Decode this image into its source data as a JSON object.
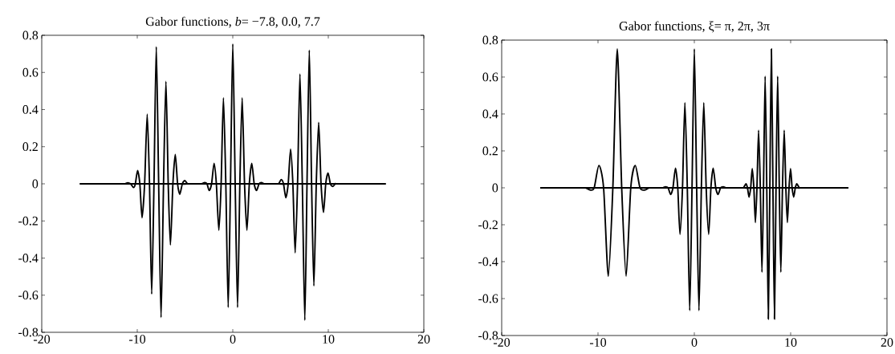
{
  "chart_data": [
    {
      "type": "line",
      "title": "Gabor functions, *b*= −7.8, 0.0, 7.7",
      "xlim": [
        -20,
        20
      ],
      "ylim": [
        -0.8,
        0.8
      ],
      "xticks": [
        -20,
        -10,
        0,
        10,
        20
      ],
      "yticks": [
        -0.8,
        -0.6,
        -0.4,
        -0.2,
        0,
        0.2,
        0.4,
        0.6,
        0.8
      ],
      "series": [
        {
          "color": "#000000",
          "x": [
            -16,
            -11.6,
            -11.3,
            -11.0,
            -10.7,
            -10.4,
            -10.2,
            -9.97,
            -9.73,
            -9.5,
            -9.23,
            -8.96,
            -8.72,
            -8.49,
            -8.25,
            -8.01,
            -7.76,
            -7.51,
            -7.25,
            -7.0,
            -6.76,
            -6.53,
            -6.27,
            -6.02,
            -5.78,
            -5.55,
            -5.28,
            -5.01,
            -4.75,
            -4.45,
            16
          ],
          "values": [
            0,
            0,
            0,
            0.006,
            0,
            -0.02,
            0,
            0.072,
            0,
            -0.183,
            0,
            0.375,
            0,
            -0.594,
            0,
            0.739,
            0,
            -0.72,
            0,
            0.552,
            0,
            -0.33,
            0,
            0.158,
            0,
            -0.056,
            0,
            0.017,
            0,
            0,
            0
          ]
        },
        {
          "color": "#000000",
          "x": [
            -16,
            -3.6,
            -3.3,
            -2.94,
            -2.7,
            -2.47,
            -2.22,
            -1.96,
            -1.72,
            -1.46,
            -1.22,
            -0.98,
            -0.73,
            -0.48,
            -0.24,
            0,
            0.25,
            0.5,
            0.74,
            0.98,
            1.23,
            1.48,
            1.73,
            1.99,
            2.24,
            2.49,
            2.75,
            3.0,
            3.3,
            3.6,
            16
          ],
          "values": [
            0,
            0,
            0,
            0.007,
            0,
            -0.036,
            0,
            0.11,
            0,
            -0.25,
            0,
            0.463,
            0,
            -0.666,
            0,
            0.754,
            0,
            -0.666,
            0,
            0.463,
            0,
            -0.25,
            0,
            0.11,
            0,
            -0.036,
            0,
            0.007,
            0,
            0,
            0
          ]
        },
        {
          "color": "#000000",
          "x": [
            -16,
            4.5,
            4.8,
            5.07,
            5.31,
            5.55,
            5.8,
            6.05,
            6.29,
            6.53,
            6.78,
            7.03,
            7.28,
            7.54,
            7.77,
            8.01,
            8.25,
            8.49,
            8.74,
            8.99,
            9.24,
            9.5,
            9.73,
            9.97,
            10.22,
            10.48,
            10.75,
            11.05,
            16
          ],
          "values": [
            0,
            0,
            0,
            0.023,
            0,
            -0.075,
            0,
            0.187,
            0,
            -0.372,
            0,
            0.592,
            0,
            -0.735,
            0,
            0.72,
            0,
            -0.55,
            0,
            0.331,
            0,
            -0.154,
            0,
            0.058,
            0,
            -0.014,
            0,
            0,
            0
          ]
        }
      ]
    },
    {
      "type": "line",
      "title": "Gabor functions, ξ= π, 2π, 3π",
      "xlim": [
        -20,
        20
      ],
      "ylim": [
        -0.8,
        0.8
      ],
      "xticks": [
        -20,
        -10,
        0,
        10,
        20
      ],
      "yticks": [
        -0.8,
        -0.6,
        -0.4,
        -0.2,
        0,
        0.2,
        0.4,
        0.6,
        0.8
      ],
      "series": [
        {
          "color": "#000000",
          "x": [
            -16,
            -11.7,
            -11.3,
            -10.8,
            -10.4,
            -9.91,
            -9.42,
            -8.93,
            -8.46,
            -8.0,
            -7.54,
            -7.08,
            -6.6,
            -6.13,
            -5.64,
            -5.15,
            -4.7,
            -4.3,
            16
          ],
          "values": [
            0,
            0,
            0,
            -0.012,
            0,
            0.121,
            0,
            -0.478,
            0,
            0.752,
            0,
            -0.478,
            0,
            0.121,
            0,
            -0.012,
            0,
            0,
            0
          ]
        },
        {
          "color": "#000000",
          "x": [
            -16,
            -3.6,
            -3.3,
            -3.0,
            -2.72,
            -2.47,
            -2.22,
            -1.96,
            -1.72,
            -1.49,
            -1.23,
            -0.98,
            -0.73,
            -0.48,
            -0.24,
            0,
            0.24,
            0.48,
            0.73,
            0.98,
            1.23,
            1.49,
            1.72,
            1.96,
            2.22,
            2.47,
            2.72,
            3.0,
            3.3,
            3.6,
            16
          ],
          "values": [
            0,
            0,
            0,
            0.006,
            0,
            -0.036,
            0,
            0.107,
            0,
            -0.252,
            0,
            0.461,
            0,
            -0.665,
            0,
            0.752,
            0,
            -0.665,
            0,
            0.461,
            0,
            -0.252,
            0,
            0.107,
            0,
            -0.036,
            0,
            0.006,
            0,
            0,
            0
          ]
        },
        {
          "color": "#000000",
          "x": [
            -16,
            4.85,
            5.1,
            5.36,
            5.52,
            5.68,
            5.85,
            6.01,
            6.18,
            6.34,
            6.5,
            6.67,
            6.85,
            7.02,
            7.18,
            7.35,
            7.52,
            7.68,
            7.84,
            8.0,
            8.16,
            8.32,
            8.48,
            8.65,
            8.82,
            8.98,
            9.15,
            9.33,
            9.5,
            9.66,
            9.83,
            9.99,
            10.15,
            10.32,
            10.48,
            10.64,
            10.9,
            11.15,
            16
          ],
          "values": [
            0,
            0,
            0,
            0.022,
            0,
            -0.05,
            0,
            0.104,
            0,
            -0.188,
            0,
            0.312,
            0,
            -0.457,
            0,
            0.604,
            0,
            -0.711,
            0,
            0.752,
            0,
            -0.711,
            0,
            0.604,
            0,
            -0.457,
            0,
            0.312,
            0,
            -0.188,
            0,
            0.104,
            0,
            -0.05,
            0,
            0.022,
            0,
            0,
            0
          ]
        }
      ]
    }
  ]
}
